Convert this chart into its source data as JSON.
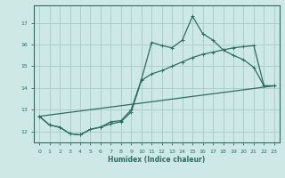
{
  "xlabel": "Humidex (Indice chaleur)",
  "ylabel": "",
  "background_color": "#cde8e5",
  "line_color": "#2d6e62",
  "grid_color": "#aacfcc",
  "xlim": [
    -0.5,
    23.5
  ],
  "ylim": [
    11.5,
    17.8
  ],
  "yticks": [
    12,
    13,
    14,
    15,
    16,
    17
  ],
  "xticks": [
    0,
    1,
    2,
    3,
    4,
    5,
    6,
    7,
    8,
    9,
    10,
    11,
    12,
    13,
    14,
    15,
    16,
    17,
    18,
    19,
    20,
    21,
    22,
    23
  ],
  "series1_x": [
    0,
    1,
    2,
    3,
    4,
    5,
    6,
    7,
    8,
    9,
    10,
    11,
    12,
    13,
    14,
    15,
    16,
    17,
    18,
    19,
    20,
    21,
    22,
    23
  ],
  "series1_y": [
    12.7,
    12.3,
    12.2,
    11.9,
    11.85,
    12.1,
    12.2,
    12.45,
    12.5,
    13.0,
    14.4,
    16.1,
    15.95,
    15.85,
    16.2,
    17.3,
    16.5,
    16.2,
    15.75,
    15.5,
    15.3,
    14.95,
    14.1,
    14.1
  ],
  "series2_x": [
    0,
    1,
    2,
    3,
    4,
    5,
    6,
    7,
    8,
    9,
    10,
    11,
    12,
    13,
    14,
    15,
    16,
    17,
    18,
    19,
    20,
    21,
    22,
    23
  ],
  "series2_y": [
    12.7,
    12.3,
    12.2,
    11.9,
    11.85,
    12.1,
    12.2,
    12.35,
    12.45,
    12.9,
    14.35,
    14.65,
    14.8,
    15.0,
    15.2,
    15.4,
    15.55,
    15.65,
    15.75,
    15.85,
    15.9,
    15.95,
    14.1,
    14.1
  ],
  "series3_x": [
    0,
    23
  ],
  "series3_y": [
    12.7,
    14.1
  ]
}
